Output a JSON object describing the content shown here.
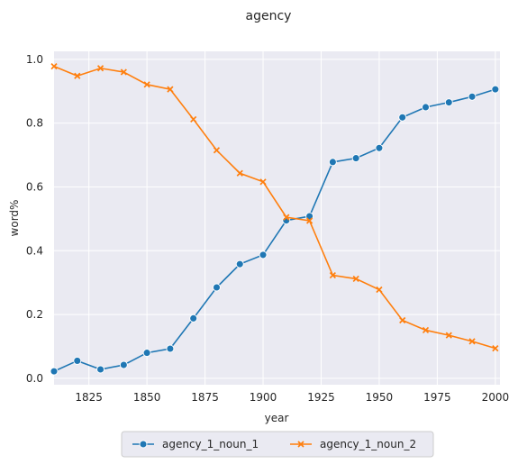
{
  "chart_data": {
    "type": "line",
    "title": "agency",
    "xlabel": "year",
    "ylabel": "word%",
    "xlim": [
      1810,
      2002
    ],
    "ylim": [
      -0.02,
      1.025
    ],
    "xticks": [
      1825,
      1850,
      1875,
      1900,
      1925,
      1950,
      1975,
      2000
    ],
    "yticks": [
      0.0,
      0.2,
      0.4,
      0.6,
      0.8,
      1.0
    ],
    "xtick_labels": [
      "1825",
      "1850",
      "1875",
      "1900",
      "1925",
      "1950",
      "1975",
      "2000"
    ],
    "ytick_labels": [
      "0.0",
      "0.2",
      "0.4",
      "0.6",
      "0.8",
      "1.0"
    ],
    "grid": true,
    "legend_position": "bottom-center",
    "x": [
      1810,
      1820,
      1830,
      1840,
      1850,
      1860,
      1870,
      1880,
      1890,
      1900,
      1910,
      1920,
      1930,
      1940,
      1950,
      1960,
      1970,
      1980,
      1990,
      2000
    ],
    "series": [
      {
        "name": "agency_1_noun_1",
        "color": "#1f77b4",
        "marker": "circle",
        "values": [
          0.022,
          0.055,
          0.028,
          0.042,
          0.08,
          0.093,
          0.188,
          0.285,
          0.358,
          0.387,
          0.495,
          0.508,
          0.678,
          0.69,
          0.722,
          0.818,
          0.85,
          0.865,
          0.883,
          0.906
        ]
      },
      {
        "name": "agency_1_noun_2",
        "color": "#ff7f0e",
        "marker": "x",
        "values": [
          0.978,
          0.948,
          0.972,
          0.96,
          0.921,
          0.906,
          0.812,
          0.715,
          0.643,
          0.616,
          0.505,
          0.494,
          0.323,
          0.312,
          0.278,
          0.182,
          0.151,
          0.135,
          0.116,
          0.094
        ]
      }
    ]
  }
}
